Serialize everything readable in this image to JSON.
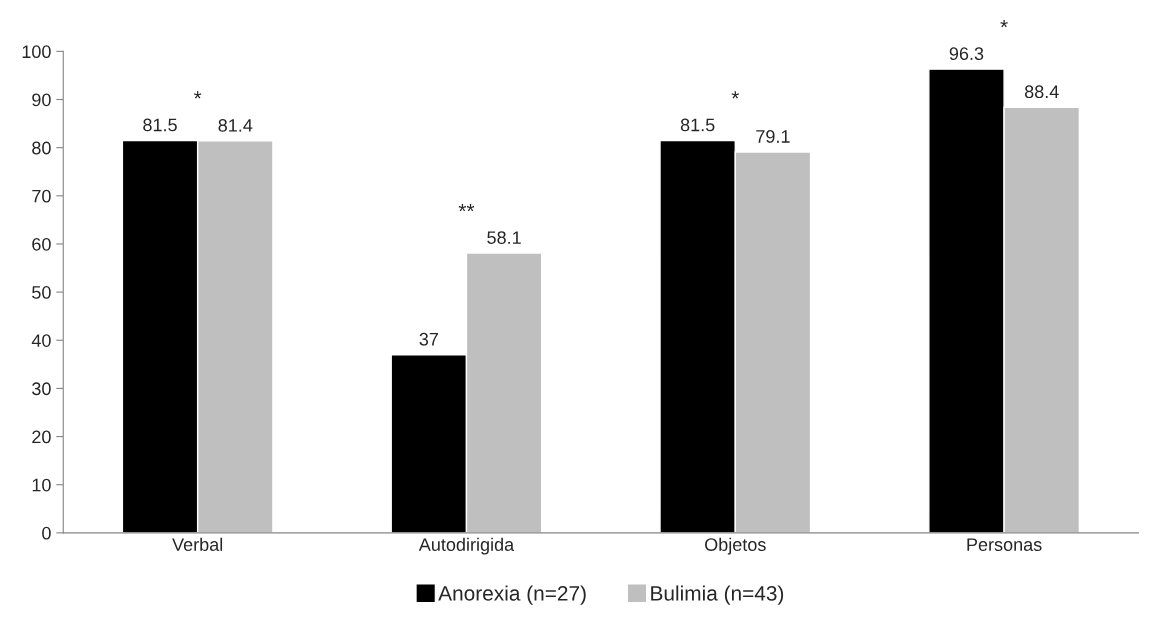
{
  "chart_data": {
    "type": "bar",
    "categories": [
      "Verbal",
      "Autodirigida",
      "Objetos",
      "Personas"
    ],
    "series": [
      {
        "name": "Anorexia (n=27)",
        "color": "#000000",
        "values": [
          81.5,
          37,
          81.5,
          96.3
        ]
      },
      {
        "name": "Bulimia (n=43)",
        "color": "#bfbfbf",
        "values": [
          81.4,
          58.1,
          79.1,
          88.4
        ]
      }
    ],
    "data_labels": true,
    "ylim": [
      0,
      100
    ],
    "yticks": [
      0,
      10,
      20,
      30,
      40,
      50,
      60,
      70,
      80,
      90,
      100
    ],
    "grid": false,
    "legend": "bottom",
    "annotations": [
      "*",
      "**",
      "*",
      "*"
    ]
  }
}
